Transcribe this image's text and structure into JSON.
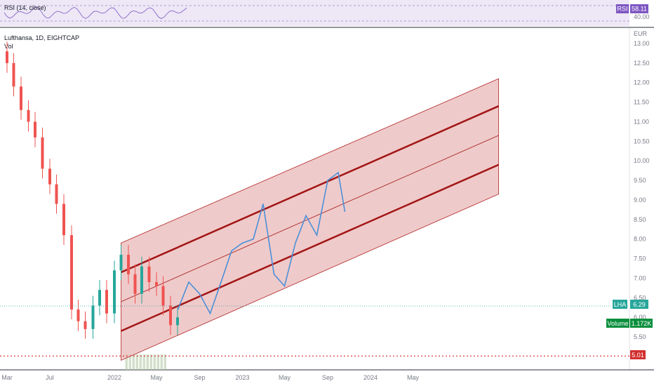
{
  "header": {
    "symbol": "Lufthansa, 1D, EIGHTCAP",
    "volume_label": "Vol"
  },
  "rsi": {
    "label": "RSI (14, close)",
    "value": "58.11",
    "ticks": [
      "60.00",
      "40.00"
    ],
    "badge_text": "RSI",
    "color": "#7e57c2"
  },
  "price_axis": {
    "unit": "EUR",
    "ticks": [
      "13.00",
      "12.50",
      "12.00",
      "11.50",
      "11.00",
      "10.50",
      "10.00",
      "9.50",
      "9.00",
      "8.50",
      "8.00",
      "7.50",
      "7.00",
      "6.50",
      "6.00",
      "5.50"
    ]
  },
  "time_axis": {
    "ticks": [
      "Mar",
      "Jul",
      "2022",
      "May",
      "Sep",
      "2023",
      "May",
      "Sep",
      "2024",
      "May"
    ]
  },
  "badges": {
    "symbol_tag": "LHA",
    "last_price": "6.29",
    "volume_tag": "Volume",
    "volume_value": "1.172K",
    "low_line": "5.01"
  },
  "colors": {
    "up": "#26a69a",
    "down": "#ef5350",
    "line_series": "#4a90d9",
    "channel": "#b22222",
    "channel_fill": "#e8b4b4",
    "rsi_band": "#ede7f6"
  },
  "chart_data": {
    "type": "line",
    "title": "Lufthansa, 1D, EIGHTCAP",
    "ylabel": "EUR",
    "ylim": [
      5.0,
      13.1
    ],
    "x_ticks": [
      "Mar",
      "Jul",
      "2022",
      "May",
      "Sep",
      "2023",
      "May",
      "Sep",
      "2024",
      "May"
    ],
    "series": [
      {
        "style": "candlestick",
        "x": [
          "2021-03-01",
          "2021-03-20",
          "2021-04-10",
          "2021-05-01",
          "2021-05-20",
          "2021-06-10",
          "2021-07-01",
          "2021-07-20",
          "2021-08-10",
          "2021-09-01",
          "2021-09-20",
          "2021-10-10",
          "2021-11-01",
          "2021-11-20",
          "2021-12-10",
          "2022-01-01",
          "2022-01-20",
          "2022-02-10",
          "2022-03-01",
          "2022-03-20",
          "2022-04-10",
          "2022-05-01",
          "2022-05-20",
          "2022-06-10",
          "2022-06-30"
        ],
        "values": [
          12.5,
          11.9,
          11.3,
          11.0,
          10.6,
          9.8,
          9.4,
          8.9,
          8.1,
          6.2,
          5.9,
          5.7,
          6.3,
          6.7,
          6.1,
          7.2,
          7.6,
          7.1,
          6.6,
          7.3,
          6.9,
          6.8,
          6.3,
          5.8,
          6.0
        ]
      },
      {
        "style": "line",
        "x": [
          "2022-07-01",
          "2022-08-01",
          "2022-09-01",
          "2022-10-01",
          "2022-11-01",
          "2022-12-01",
          "2023-01-01",
          "2023-02-01",
          "2023-03-01",
          "2023-04-01",
          "2023-05-01",
          "2023-06-01",
          "2023-07-01",
          "2023-08-01",
          "2023-09-01",
          "2023-10-01",
          "2023-10-20"
        ],
        "values": [
          6.2,
          6.9,
          6.6,
          6.1,
          6.9,
          7.7,
          7.9,
          8.0,
          8.9,
          7.1,
          6.8,
          7.9,
          8.6,
          8.1,
          9.5,
          9.7,
          8.7
        ]
      }
    ],
    "annotations": {
      "last_price": 6.29,
      "dotted_low": 5.01,
      "channel": {
        "start": "2022-01-20",
        "end": "2024-12-31",
        "upper_start": 7.9,
        "upper_end": 12.1,
        "mid_upper_start": 7.15,
        "mid_upper_end": 11.4,
        "center_start": 6.4,
        "center_end": 10.65,
        "mid_lower_start": 5.65,
        "mid_lower_end": 9.9,
        "lower_start": 4.9,
        "lower_end": 9.15
      }
    }
  }
}
